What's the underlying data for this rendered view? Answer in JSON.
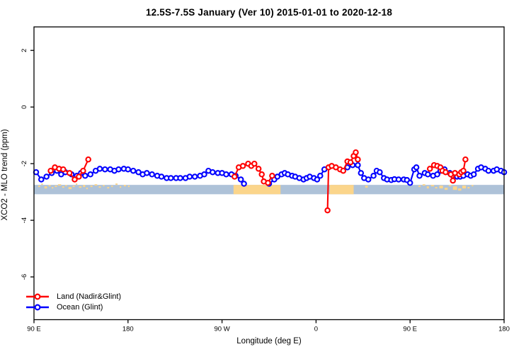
{
  "title": "12.5S-7.5S January (Ver 10)   2015-01-01 to 2020-12-18",
  "chart_data": {
    "type": "line",
    "title": "12.5S-7.5S January (Ver 10)   2015-01-01 to 2020-12-18",
    "xlabel": "Longitude (deg E)",
    "ylabel": "XCO2 - MLO trend (ppm)",
    "grid": false,
    "x_axis": {
      "range_deg": [
        90,
        540
      ],
      "note": "longitude axis wraps eastward: 90E,180,90W,0,90E,180",
      "ticks": [
        {
          "deg": 90,
          "label": "90 E"
        },
        {
          "deg": 180,
          "label": "180"
        },
        {
          "deg": 270,
          "label": "90 W"
        },
        {
          "deg": 360,
          "label": "0"
        },
        {
          "deg": 450,
          "label": "90 E"
        },
        {
          "deg": 540,
          "label": "180"
        }
      ]
    },
    "y_axis": {
      "range": [
        -7.51,
        2.83
      ],
      "ticks": [
        {
          "v": 2,
          "label": "2"
        },
        {
          "v": 0,
          "label": "0"
        },
        {
          "v": -2,
          "label": "-2"
        },
        {
          "v": -4,
          "label": "-4"
        },
        {
          "v": -6,
          "label": "-6"
        }
      ]
    },
    "colors": {
      "axis": "#000000",
      "marker_fill": "#ffffff"
    },
    "series": [
      {
        "name": "Ocean (Glint)",
        "color": "#0000ff",
        "segments": [
          [
            [
              92,
              -2.3
            ],
            [
              97,
              -2.56
            ],
            [
              102,
              -2.46
            ],
            [
              107,
              -2.33
            ],
            [
              112,
              -2.25
            ],
            [
              116,
              -2.38
            ],
            [
              120,
              -2.3
            ],
            [
              126,
              -2.38
            ],
            [
              131,
              -2.43
            ],
            [
              135,
              -2.33
            ],
            [
              139,
              -2.43
            ],
            [
              144,
              -2.38
            ],
            [
              149,
              -2.25
            ],
            [
              153,
              -2.18
            ],
            [
              158,
              -2.2
            ],
            [
              163,
              -2.2
            ],
            [
              167,
              -2.25
            ],
            [
              171,
              -2.2
            ],
            [
              176,
              -2.18
            ],
            [
              180,
              -2.2
            ],
            [
              185,
              -2.25
            ],
            [
              190,
              -2.3
            ],
            [
              194,
              -2.38
            ],
            [
              198,
              -2.33
            ],
            [
              203,
              -2.38
            ],
            [
              208,
              -2.43
            ],
            [
              212,
              -2.46
            ],
            [
              217,
              -2.51
            ],
            [
              221,
              -2.51
            ],
            [
              226,
              -2.51
            ],
            [
              230,
              -2.51
            ],
            [
              235,
              -2.51
            ],
            [
              239,
              -2.46
            ],
            [
              244,
              -2.46
            ],
            [
              249,
              -2.43
            ],
            [
              253,
              -2.38
            ],
            [
              257,
              -2.25
            ],
            [
              261,
              -2.3
            ],
            [
              266,
              -2.33
            ],
            [
              270,
              -2.33
            ],
            [
              274,
              -2.38
            ],
            [
              279,
              -2.38
            ],
            [
              283,
              -2.43
            ],
            [
              288,
              -2.56
            ],
            [
              291,
              -2.71
            ]
          ],
          [
            [
              315,
              -2.71
            ],
            [
              320,
              -2.56
            ],
            [
              323,
              -2.46
            ],
            [
              327,
              -2.38
            ],
            [
              330,
              -2.33
            ],
            [
              333,
              -2.38
            ],
            [
              337,
              -2.43
            ],
            [
              340,
              -2.46
            ],
            [
              344,
              -2.51
            ],
            [
              348,
              -2.56
            ],
            [
              351,
              -2.51
            ],
            [
              354,
              -2.46
            ],
            [
              358,
              -2.51
            ],
            [
              361,
              -2.56
            ],
            [
              364,
              -2.43
            ],
            [
              368,
              -2.2
            ]
          ],
          [
            [
              390,
              -2.13
            ],
            [
              395,
              -2.05
            ],
            [
              400,
              -2.05
            ],
            [
              403,
              -2.33
            ],
            [
              406,
              -2.51
            ],
            [
              410,
              -2.56
            ],
            [
              415,
              -2.43
            ],
            [
              418,
              -2.25
            ],
            [
              421,
              -2.3
            ],
            [
              425,
              -2.51
            ],
            [
              428,
              -2.56
            ],
            [
              432,
              -2.58
            ],
            [
              435,
              -2.55
            ],
            [
              439,
              -2.56
            ],
            [
              444,
              -2.56
            ],
            [
              447,
              -2.58
            ],
            [
              450,
              -2.68
            ],
            [
              454,
              -2.2
            ],
            [
              456,
              -2.13
            ],
            [
              459,
              -2.43
            ],
            [
              464,
              -2.33
            ],
            [
              467,
              -2.38
            ],
            [
              472,
              -2.43
            ],
            [
              476,
              -2.38
            ],
            [
              479,
              -2.25
            ],
            [
              483,
              -2.2
            ],
            [
              488,
              -2.33
            ],
            [
              491,
              -2.43
            ],
            [
              495,
              -2.46
            ],
            [
              498,
              -2.46
            ],
            [
              501,
              -2.43
            ],
            [
              505,
              -2.38
            ],
            [
              508,
              -2.43
            ],
            [
              511,
              -2.38
            ],
            [
              515,
              -2.18
            ],
            [
              518,
              -2.13
            ],
            [
              522,
              -2.18
            ],
            [
              525,
              -2.25
            ],
            [
              530,
              -2.25
            ],
            [
              533,
              -2.2
            ],
            [
              537,
              -2.25
            ],
            [
              540,
              -2.3
            ]
          ]
        ]
      },
      {
        "name": "Land (Nadir&Glint)",
        "color": "#ff0000",
        "segments": [
          [
            [
              106,
              -2.25
            ],
            [
              110,
              -2.13
            ],
            [
              114,
              -2.18
            ],
            [
              118,
              -2.2
            ],
            [
              124,
              -2.33
            ],
            [
              129,
              -2.56
            ],
            [
              133,
              -2.46
            ],
            [
              137,
              -2.25
            ],
            [
              142,
              -1.85
            ]
          ],
          [
            [
              282,
              -2.46
            ],
            [
              286,
              -2.13
            ],
            [
              290,
              -2.08
            ],
            [
              295,
              -2.0
            ],
            [
              298,
              -2.08
            ],
            [
              301,
              -2.0
            ],
            [
              305,
              -2.18
            ],
            [
              308,
              -2.38
            ],
            [
              310,
              -2.63
            ],
            [
              314,
              -2.68
            ],
            [
              318,
              -2.43
            ]
          ],
          [
            [
              371,
              -3.65
            ],
            [
              372,
              -2.13
            ],
            [
              375,
              -2.08
            ],
            [
              379,
              -2.13
            ],
            [
              383,
              -2.2
            ],
            [
              386,
              -2.25
            ],
            [
              390,
              -1.92
            ],
            [
              393,
              -1.95
            ],
            [
              396,
              -1.73
            ],
            [
              398,
              -1.6
            ],
            [
              400,
              -1.85
            ]
          ],
          [
            [
              469,
              -2.18
            ],
            [
              473,
              -2.05
            ],
            [
              476,
              -2.08
            ],
            [
              479,
              -2.13
            ],
            [
              481,
              -2.25
            ],
            [
              484,
              -2.3
            ],
            [
              489,
              -2.38
            ],
            [
              491,
              -2.6
            ],
            [
              493,
              -2.33
            ],
            [
              497,
              -2.38
            ],
            [
              499,
              -2.3
            ],
            [
              501,
              -2.25
            ],
            [
              503,
              -1.85
            ]
          ]
        ]
      }
    ],
    "map_band": {
      "v_top": -2.75,
      "v_bottom": -3.08,
      "ocean_color": "#aec2d8",
      "land_color": "#fbd58b",
      "land_segments_deg": [
        [
          281,
          326
        ],
        [
          373,
          396
        ]
      ],
      "island_specks": [
        {
          "deg": 94,
          "w": 2,
          "dy": 1,
          "h": 2
        },
        {
          "deg": 97,
          "w": 1.5,
          "dy": -2,
          "h": 2
        },
        {
          "deg": 100,
          "w": 2.5,
          "dy": 2,
          "h": 3
        },
        {
          "deg": 104,
          "w": 2,
          "dy": 0,
          "h": 2
        },
        {
          "deg": 107,
          "w": 1.5,
          "dy": 3,
          "h": 2
        },
        {
          "deg": 110,
          "w": 2,
          "dy": 1,
          "h": 2
        },
        {
          "deg": 113,
          "w": 3,
          "dy": -1,
          "h": 2
        },
        {
          "deg": 117,
          "w": 2,
          "dy": 2,
          "h": 2
        },
        {
          "deg": 120,
          "w": 1.5,
          "dy": 0,
          "h": 2
        },
        {
          "deg": 123,
          "w": 3,
          "dy": 3,
          "h": 3
        },
        {
          "deg": 127,
          "w": 2,
          "dy": 1,
          "h": 2
        },
        {
          "deg": 130,
          "w": 1.5,
          "dy": -2,
          "h": 2
        },
        {
          "deg": 133,
          "w": 2.5,
          "dy": 2,
          "h": 2
        },
        {
          "deg": 137,
          "w": 2,
          "dy": 0,
          "h": 3
        },
        {
          "deg": 140,
          "w": 1.5,
          "dy": 4,
          "h": 2
        },
        {
          "deg": 144,
          "w": 2,
          "dy": 1,
          "h": 2
        },
        {
          "deg": 148,
          "w": 2.5,
          "dy": -1,
          "h": 2
        },
        {
          "deg": 152,
          "w": 2,
          "dy": 2,
          "h": 2
        },
        {
          "deg": 156,
          "w": 1.5,
          "dy": 0,
          "h": 2
        },
        {
          "deg": 160,
          "w": 2,
          "dy": 3,
          "h": 2
        },
        {
          "deg": 164,
          "w": 1.5,
          "dy": 1,
          "h": 2
        },
        {
          "deg": 168,
          "w": 2,
          "dy": -2,
          "h": 2
        },
        {
          "deg": 172,
          "w": 1.5,
          "dy": 2,
          "h": 2
        },
        {
          "deg": 176,
          "w": 2,
          "dy": 0,
          "h": 2
        },
        {
          "deg": 180,
          "w": 1.5,
          "dy": 1,
          "h": 2
        },
        {
          "deg": 407,
          "w": 2.5,
          "dy": 1,
          "h": 3
        },
        {
          "deg": 458,
          "w": 2,
          "dy": 1,
          "h": 2
        },
        {
          "deg": 462,
          "w": 2.5,
          "dy": -1,
          "h": 2
        },
        {
          "deg": 466,
          "w": 2,
          "dy": 2,
          "h": 3
        },
        {
          "deg": 470,
          "w": 3,
          "dy": 0,
          "h": 2
        },
        {
          "deg": 474,
          "w": 2,
          "dy": 3,
          "h": 2
        },
        {
          "deg": 478,
          "w": 3.5,
          "dy": 1,
          "h": 4
        },
        {
          "deg": 483,
          "w": 3,
          "dy": 4,
          "h": 3
        },
        {
          "deg": 487,
          "w": 2.5,
          "dy": 0,
          "h": 2
        },
        {
          "deg": 491,
          "w": 4,
          "dy": 2,
          "h": 5
        },
        {
          "deg": 496,
          "w": 3,
          "dy": 5,
          "h": 3
        },
        {
          "deg": 500,
          "w": 3.5,
          "dy": 1,
          "h": 4
        },
        {
          "deg": 505,
          "w": 2,
          "dy": 3,
          "h": 2
        },
        {
          "deg": 509,
          "w": 1.5,
          "dy": 0,
          "h": 2
        }
      ]
    },
    "legend": {
      "position": "bottom-left",
      "entries": [
        {
          "label": "Land (Nadir&Glint)",
          "color": "#ff0000"
        },
        {
          "label": "Ocean (Glint)",
          "color": "#0000ff"
        }
      ]
    }
  }
}
